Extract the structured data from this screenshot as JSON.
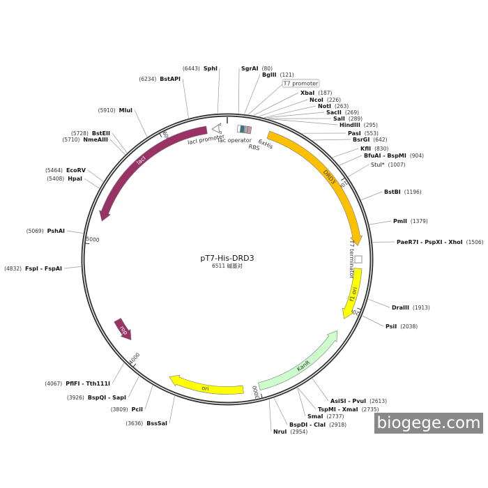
{
  "plasmid": {
    "name": "pT7-His-DRD3",
    "length_bp": 6511,
    "size_label": "6511 碱基对"
  },
  "ticks": [
    1000,
    2000,
    3000,
    4000,
    5000,
    6000
  ],
  "features": [
    {
      "name": "DRD3",
      "start": 330,
      "end": 1520,
      "direction": 1,
      "color": "#ffc000",
      "text_color": "#333333"
    },
    {
      "name": "lacI",
      "start": 5190,
      "end": 6348,
      "direction": -1,
      "color": "#993366",
      "text_color": "#ffffff"
    },
    {
      "name": "f1 ori",
      "start": 1700,
      "end": 2115,
      "direction": 1,
      "color": "#ffff00",
      "text_color": "#333333"
    },
    {
      "name": "KanR",
      "start": 2225,
      "end": 3000,
      "direction": -1,
      "color": "#ccffcc",
      "text_color": "#333333"
    },
    {
      "name": "ori",
      "start": 3130,
      "end": 3730,
      "direction": 1,
      "color": "#ffff00",
      "text_color": "#333333"
    },
    {
      "name": "rop",
      "start": 4160,
      "end": 4360,
      "direction": -1,
      "color": "#993366",
      "text_color": "#ffffff"
    }
  ],
  "small_features": [
    {
      "name": "lacI promoter",
      "color": "#ffffff"
    },
    {
      "name": "lac operator",
      "color": "#ffffff"
    },
    {
      "name": "RBS",
      "color": "#337788"
    },
    {
      "name": "6xHis",
      "color": "#cc99aa"
    },
    {
      "name": "T7 terminator",
      "color": "#ffffff"
    },
    {
      "name": "T7 promoter",
      "color": "#ffffff"
    }
  ],
  "sites": [
    {
      "name": "SgrAI",
      "pos": 80
    },
    {
      "name": "BglII",
      "pos": 121
    },
    {
      "name": "XbaI",
      "pos": 187
    },
    {
      "name": "NcoI",
      "pos": 226
    },
    {
      "name": "NotI",
      "pos": 263
    },
    {
      "name": "SacII",
      "pos": 269
    },
    {
      "name": "SalI",
      "pos": 289
    },
    {
      "name": "HindIII",
      "pos": 295
    },
    {
      "name": "PasI",
      "pos": 553
    },
    {
      "name": "BsrGI",
      "pos": 642
    },
    {
      "name": "KflI",
      "pos": 830
    },
    {
      "name": "BfuAI - BspMI",
      "pos": 904
    },
    {
      "name": "StuI*",
      "pos": 1007,
      "dim": true
    },
    {
      "name": "BstBI",
      "pos": 1196
    },
    {
      "name": "PmlI",
      "pos": 1379
    },
    {
      "name": "PaeR7I - PspXI - XhoI",
      "pos": 1506
    },
    {
      "name": "DraIII",
      "pos": 1913
    },
    {
      "name": "PsiI",
      "pos": 2038
    },
    {
      "name": "AsiSI - PvuI",
      "pos": 2613
    },
    {
      "name": "TspMI - XmaI",
      "pos": 2735
    },
    {
      "name": "SmaI",
      "pos": 2737
    },
    {
      "name": "BspDI - ClaI",
      "pos": 2918
    },
    {
      "name": "NruI",
      "pos": 2954
    },
    {
      "name": "BssSaI",
      "pos": 3636
    },
    {
      "name": "PciI",
      "pos": 3809
    },
    {
      "name": "BspQI - SapI",
      "pos": 3926
    },
    {
      "name": "PflFI - Tth111I",
      "pos": 4067
    },
    {
      "name": "FspI - FspAI",
      "pos": 4832
    },
    {
      "name": "PshAI",
      "pos": 5069
    },
    {
      "name": "HpaI",
      "pos": 5408
    },
    {
      "name": "EcoRV",
      "pos": 5464
    },
    {
      "name": "NmeAIII",
      "pos": 5710
    },
    {
      "name": "BstEII",
      "pos": 5728
    },
    {
      "name": "MluI",
      "pos": 5910
    },
    {
      "name": "BstAPI",
      "pos": 6234
    },
    {
      "name": "SphI",
      "pos": 6443
    }
  ],
  "watermark": "biogege.com"
}
